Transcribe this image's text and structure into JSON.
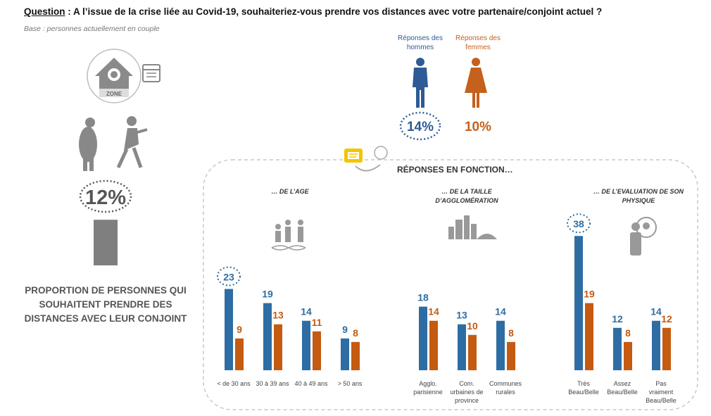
{
  "header": {
    "question_label": "Question",
    "question_text": " : A l’issue de la crise liée au Covid-19, souhaiteriez-vous prendre vos distances avec votre partenaire/conjoint actuel ?",
    "base": "Base : personnes actuellement en couple"
  },
  "overall": {
    "value_label": "12%",
    "value": 12,
    "description": "PROPORTION DE PERSONNES QUI SOUHAITENT PRENDRE DES DISTANCES AVEC LEUR CONJOINT",
    "bar_color": "#7f7f7f"
  },
  "gender": {
    "men_label": "Réponses des hommes",
    "women_label": "Réponses des femmes",
    "men_value": "14%",
    "women_value": "10%",
    "men_color": "#2e5b96",
    "women_color": "#c5601d"
  },
  "confinement_sign": "ZONE",
  "responses_title": "RÉPONSES EN FONCTION…",
  "colors": {
    "men": "#2e6da4",
    "women": "#c55a11",
    "highlight": "#2e6da4"
  },
  "chart_data": [
    {
      "type": "bar",
      "title": "… DE L’AGE",
      "categories": [
        "< de 30 ans",
        "30 à 39 ans",
        "40 à 49 ans",
        "> 50 ans"
      ],
      "series": [
        {
          "values": [
            23,
            19,
            14,
            9
          ]
        },
        {
          "values": [
            9,
            13,
            11,
            8
          ]
        }
      ],
      "highlight": {
        "series": 0,
        "index": 0
      }
    },
    {
      "type": "bar",
      "title": "… DE LA TAILLE D’AGGLOMÉRATION",
      "categories": [
        "Agglo. parisienne",
        "Com. urbaines de province",
        "Communes rurales"
      ],
      "series": [
        {
          "values": [
            18,
            13,
            14
          ]
        },
        {
          "values": [
            14,
            10,
            8
          ]
        }
      ]
    },
    {
      "type": "bar",
      "title": "… DE L’EVALUATION DE SON PHYSIQUE",
      "categories": [
        "Très Beau/Belle",
        "Assez Beau/Belle",
        "Pas vraiment Beau/Belle"
      ],
      "series": [
        {
          "values": [
            38,
            12,
            14
          ]
        },
        {
          "values": [
            19,
            8,
            12
          ]
        }
      ],
      "highlight": {
        "series": 0,
        "index": 0
      }
    }
  ]
}
